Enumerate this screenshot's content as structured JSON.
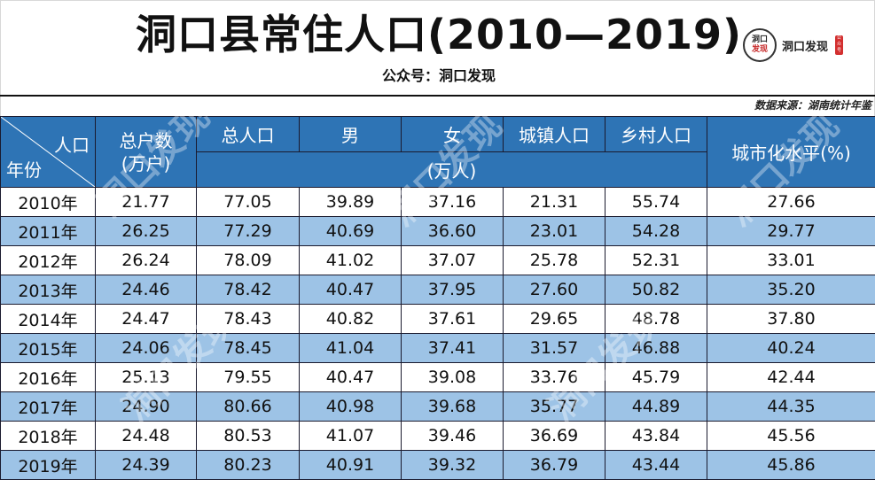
{
  "header": {
    "title": "洞口县常住人口(2010—2019)",
    "subtitle": "公众号：洞口发现",
    "logo": {
      "circle_line1": "洞口",
      "circle_line2": "发现",
      "text": "洞口发现",
      "seal": "公众号",
      "icon": "brand-logo-icon"
    },
    "source": "数据来源：湖南统计年鉴"
  },
  "table": {
    "corner": {
      "top_right": "人口",
      "bottom_left": "年份"
    },
    "columns": [
      {
        "label": "总户数",
        "unit": "(万户)"
      },
      {
        "label": "总人口"
      },
      {
        "label": "男"
      },
      {
        "label": "女"
      },
      {
        "label": "城镇人口"
      },
      {
        "label": "乡村人口"
      },
      {
        "label": "城市化水平(%)"
      }
    ],
    "shared_unit": "(万人)",
    "rows": [
      {
        "year": "2010年",
        "households": "21.77",
        "total": "77.05",
        "male": "39.89",
        "female": "37.16",
        "urban": "21.31",
        "rural": "55.74",
        "urbanization": "27.66"
      },
      {
        "year": "2011年",
        "households": "26.25",
        "total": "77.29",
        "male": "40.69",
        "female": "36.60",
        "urban": "23.01",
        "rural": "54.28",
        "urbanization": "29.77"
      },
      {
        "year": "2012年",
        "households": "26.24",
        "total": "78.09",
        "male": "41.02",
        "female": "37.07",
        "urban": "25.78",
        "rural": "52.31",
        "urbanization": "33.01"
      },
      {
        "year": "2013年",
        "households": "24.46",
        "total": "78.42",
        "male": "40.47",
        "female": "37.95",
        "urban": "27.60",
        "rural": "50.82",
        "urbanization": "35.20"
      },
      {
        "year": "2014年",
        "households": "24.47",
        "total": "78.43",
        "male": "40.82",
        "female": "37.61",
        "urban": "29.65",
        "rural": "48.78",
        "urbanization": "37.80"
      },
      {
        "year": "2015年",
        "households": "24.06",
        "total": "78.45",
        "male": "41.04",
        "female": "37.41",
        "urban": "31.57",
        "rural": "46.88",
        "urbanization": "40.24"
      },
      {
        "year": "2016年",
        "households": "25.13",
        "total": "79.55",
        "male": "40.47",
        "female": "39.08",
        "urban": "33.76",
        "rural": "45.79",
        "urbanization": "42.44"
      },
      {
        "year": "2017年",
        "households": "24.90",
        "total": "80.66",
        "male": "40.98",
        "female": "39.68",
        "urban": "35.77",
        "rural": "44.89",
        "urbanization": "44.35"
      },
      {
        "year": "2018年",
        "households": "24.48",
        "total": "80.53",
        "male": "41.07",
        "female": "39.46",
        "urban": "36.69",
        "rural": "43.84",
        "urbanization": "45.56"
      },
      {
        "year": "2019年",
        "households": "24.39",
        "total": "80.23",
        "male": "40.91",
        "female": "39.32",
        "urban": "36.79",
        "rural": "43.44",
        "urbanization": "45.86"
      }
    ]
  },
  "colors": {
    "header_bg": "#2e74b5",
    "header_text": "#ffffff",
    "stripe_bg": "#9dc3e6",
    "row_bg": "#ffffff",
    "border": "#1a1a2e"
  },
  "watermark": "洞口发现"
}
